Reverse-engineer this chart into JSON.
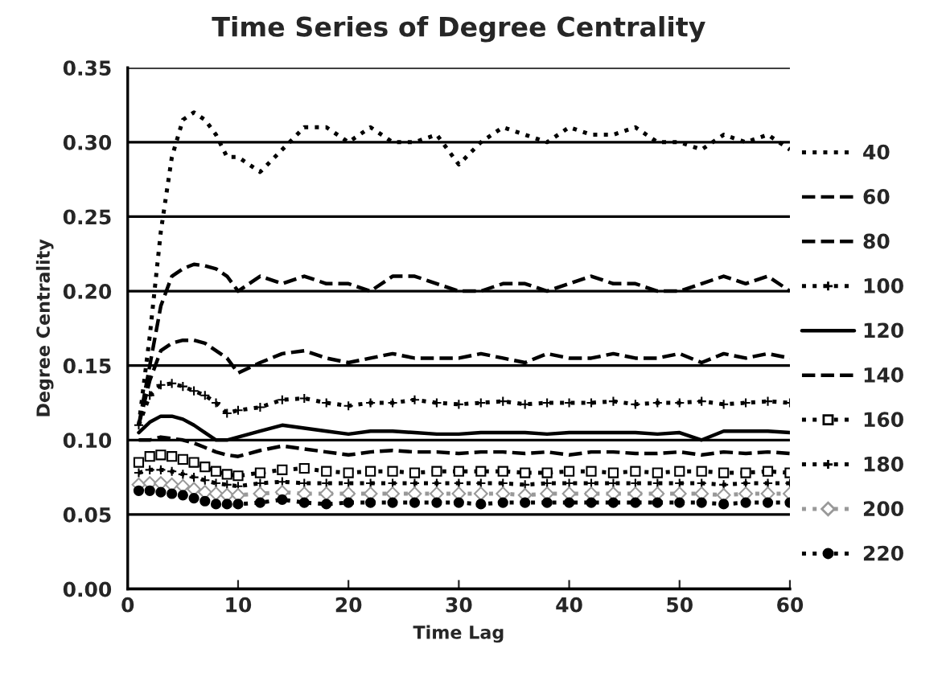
{
  "chart_data": {
    "type": "line",
    "title": "Time Series of Degree Centrality",
    "xlabel": "Time Lag",
    "ylabel": "Degree Centrality",
    "x": [
      1,
      2,
      3,
      4,
      5,
      6,
      7,
      8,
      9,
      10,
      12,
      14,
      16,
      18,
      20,
      22,
      24,
      26,
      28,
      30,
      32,
      34,
      36,
      38,
      40,
      42,
      44,
      46,
      48,
      50,
      52,
      54,
      56,
      58,
      60
    ],
    "series": [
      {
        "name": "40",
        "color": "#000000",
        "line_style": "dotted",
        "marker": "none",
        "values": [
          0.11,
          0.17,
          0.24,
          0.29,
          0.315,
          0.32,
          0.315,
          0.305,
          0.29,
          0.29,
          0.28,
          0.295,
          0.31,
          0.31,
          0.3,
          0.31,
          0.3,
          0.3,
          0.305,
          0.285,
          0.3,
          0.31,
          0.305,
          0.3,
          0.31,
          0.305,
          0.305,
          0.31,
          0.3,
          0.3,
          0.295,
          0.305,
          0.3,
          0.305,
          0.295
        ]
      },
      {
        "name": "60",
        "color": "#000000",
        "line_style": "dashed",
        "marker": "none",
        "values": [
          0.11,
          0.15,
          0.19,
          0.21,
          0.215,
          0.218,
          0.217,
          0.215,
          0.21,
          0.2,
          0.21,
          0.205,
          0.21,
          0.205,
          0.205,
          0.2,
          0.21,
          0.21,
          0.205,
          0.2,
          0.2,
          0.205,
          0.205,
          0.2,
          0.205,
          0.21,
          0.205,
          0.205,
          0.2,
          0.2,
          0.205,
          0.21,
          0.205,
          0.21,
          0.2
        ]
      },
      {
        "name": "80",
        "color": "#000000",
        "line_style": "dashed",
        "marker": "none",
        "values": [
          0.11,
          0.14,
          0.16,
          0.165,
          0.167,
          0.167,
          0.165,
          0.16,
          0.155,
          0.145,
          0.152,
          0.158,
          0.16,
          0.155,
          0.152,
          0.155,
          0.158,
          0.155,
          0.155,
          0.155,
          0.158,
          0.155,
          0.152,
          0.158,
          0.155,
          0.155,
          0.158,
          0.155,
          0.155,
          0.158,
          0.152,
          0.158,
          0.155,
          0.158,
          0.155
        ]
      },
      {
        "name": "100",
        "color": "#000000",
        "line_style": "dotted",
        "marker": "cross",
        "values": [
          0.11,
          0.13,
          0.137,
          0.138,
          0.136,
          0.133,
          0.13,
          0.125,
          0.118,
          0.12,
          0.122,
          0.127,
          0.128,
          0.125,
          0.123,
          0.125,
          0.125,
          0.127,
          0.125,
          0.124,
          0.125,
          0.126,
          0.124,
          0.125,
          0.125,
          0.125,
          0.126,
          0.124,
          0.125,
          0.125,
          0.126,
          0.124,
          0.125,
          0.126,
          0.125
        ]
      },
      {
        "name": "120",
        "color": "#000000",
        "line_style": "solid",
        "marker": "none",
        "values": [
          0.105,
          0.112,
          0.116,
          0.116,
          0.114,
          0.11,
          0.105,
          0.1,
          0.1,
          0.102,
          0.106,
          0.11,
          0.108,
          0.106,
          0.104,
          0.106,
          0.106,
          0.105,
          0.104,
          0.104,
          0.105,
          0.105,
          0.105,
          0.104,
          0.105,
          0.105,
          0.105,
          0.105,
          0.104,
          0.105,
          0.1,
          0.106,
          0.106,
          0.106,
          0.105
        ]
      },
      {
        "name": "140",
        "color": "#000000",
        "line_style": "dashed",
        "marker": "none",
        "values": [
          0.1,
          0.1,
          0.102,
          0.101,
          0.1,
          0.098,
          0.095,
          0.092,
          0.09,
          0.089,
          0.093,
          0.096,
          0.094,
          0.092,
          0.09,
          0.092,
          0.093,
          0.092,
          0.092,
          0.091,
          0.092,
          0.092,
          0.091,
          0.092,
          0.09,
          0.092,
          0.092,
          0.091,
          0.091,
          0.092,
          0.09,
          0.092,
          0.091,
          0.092,
          0.091
        ]
      },
      {
        "name": "160",
        "color": "#000000",
        "line_style": "dotted",
        "marker": "square",
        "values": [
          0.085,
          0.089,
          0.09,
          0.089,
          0.087,
          0.085,
          0.082,
          0.079,
          0.077,
          0.076,
          0.078,
          0.08,
          0.081,
          0.079,
          0.078,
          0.079,
          0.079,
          0.078,
          0.079,
          0.079,
          0.079,
          0.079,
          0.078,
          0.078,
          0.079,
          0.079,
          0.078,
          0.079,
          0.078,
          0.079,
          0.079,
          0.078,
          0.078,
          0.079,
          0.078
        ]
      },
      {
        "name": "180",
        "color": "#000000",
        "line_style": "dotted",
        "marker": "cross",
        "values": [
          0.078,
          0.08,
          0.08,
          0.079,
          0.077,
          0.075,
          0.073,
          0.071,
          0.07,
          0.069,
          0.071,
          0.072,
          0.071,
          0.071,
          0.071,
          0.071,
          0.071,
          0.071,
          0.071,
          0.071,
          0.071,
          0.071,
          0.07,
          0.071,
          0.071,
          0.071,
          0.071,
          0.071,
          0.071,
          0.071,
          0.071,
          0.07,
          0.071,
          0.071,
          0.071
        ]
      },
      {
        "name": "200",
        "color": "#999999",
        "line_style": "dotted",
        "marker": "diamond",
        "values": [
          0.07,
          0.071,
          0.071,
          0.07,
          0.069,
          0.067,
          0.065,
          0.064,
          0.063,
          0.063,
          0.064,
          0.065,
          0.064,
          0.064,
          0.064,
          0.064,
          0.064,
          0.064,
          0.064,
          0.064,
          0.064,
          0.064,
          0.063,
          0.064,
          0.064,
          0.064,
          0.064,
          0.064,
          0.064,
          0.064,
          0.064,
          0.063,
          0.064,
          0.064,
          0.064
        ]
      },
      {
        "name": "220",
        "color": "#000000",
        "line_style": "dotted",
        "marker": "circle",
        "values": [
          0.066,
          0.066,
          0.065,
          0.064,
          0.063,
          0.061,
          0.059,
          0.057,
          0.057,
          0.057,
          0.058,
          0.06,
          0.058,
          0.057,
          0.058,
          0.058,
          0.058,
          0.058,
          0.058,
          0.058,
          0.057,
          0.058,
          0.058,
          0.058,
          0.058,
          0.058,
          0.058,
          0.058,
          0.058,
          0.058,
          0.058,
          0.057,
          0.058,
          0.058,
          0.058
        ]
      }
    ],
    "xlim": [
      0,
      60
    ],
    "xticks": [
      0,
      10,
      20,
      30,
      40,
      50,
      60
    ],
    "ylim": [
      0,
      0.35
    ],
    "yticks": [
      {
        "value": 0,
        "label": "0.00"
      },
      {
        "value": 0.05,
        "label": "0.05"
      },
      {
        "value": 0.1,
        "label": "0.10"
      },
      {
        "value": 0.15,
        "label": "0.15"
      },
      {
        "value": 0.2,
        "label": "0.20"
      },
      {
        "value": 0.25,
        "label": "0.25"
      },
      {
        "value": 0.3,
        "label": "0.30"
      },
      {
        "value": 0.35,
        "label": "0.35"
      }
    ],
    "grid": "y",
    "legend": "right"
  }
}
